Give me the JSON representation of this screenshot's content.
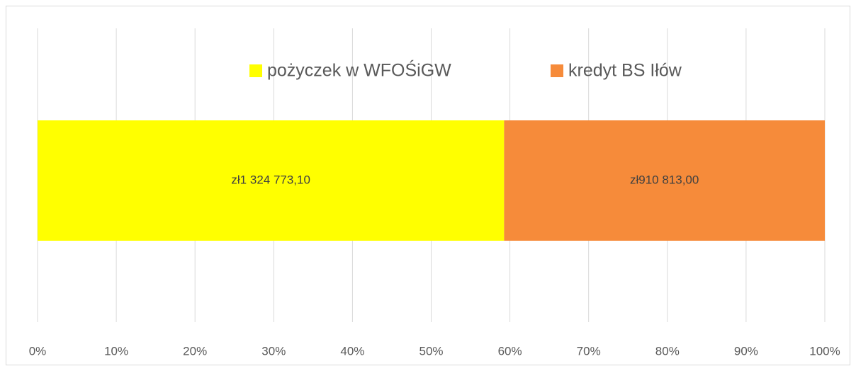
{
  "chart_data": {
    "type": "bar",
    "orientation": "horizontal",
    "stacked": "percent",
    "categories": [
      null
    ],
    "series": [
      {
        "name": "pożyczek w WFOŚiGW",
        "color": "#ffff00",
        "values": [
          1324773.1
        ],
        "value_labels": [
          "zł1 324 773,10"
        ]
      },
      {
        "name": "kredyt BS Iłów",
        "color": "#f68b3a",
        "values": [
          910813.0
        ],
        "value_labels": [
          "zł910 813,00"
        ]
      }
    ],
    "xlim": [
      0,
      100
    ],
    "xticks": [
      {
        "value": 0,
        "label": "0%"
      },
      {
        "value": 10,
        "label": "10%"
      },
      {
        "value": 20,
        "label": "20%"
      },
      {
        "value": 30,
        "label": "30%"
      },
      {
        "value": 40,
        "label": "40%"
      },
      {
        "value": 50,
        "label": "50%"
      },
      {
        "value": 60,
        "label": "60%"
      },
      {
        "value": 70,
        "label": "70%"
      },
      {
        "value": 80,
        "label": "80%"
      },
      {
        "value": 90,
        "label": "90%"
      },
      {
        "value": 100,
        "label": "100%"
      }
    ],
    "grid": true,
    "legend": "top"
  }
}
